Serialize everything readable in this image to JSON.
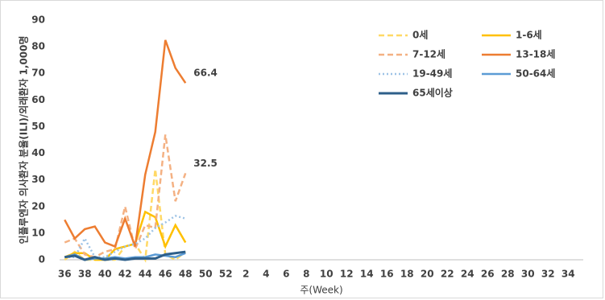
{
  "chart_data": {
    "type": "line",
    "y_label": "인플루엔자 의사환자 분율(ILI)/외래환자 1,000명",
    "x_label": "주(Week)",
    "categories": [
      "36",
      null,
      "38",
      null,
      "40",
      null,
      "42",
      null,
      "44",
      null,
      "46",
      null,
      "48",
      null,
      "50",
      null,
      "52",
      null,
      "2",
      null,
      "4",
      null,
      "6",
      null,
      "8",
      null,
      "10",
      null,
      "12",
      null,
      "14",
      null,
      "16",
      null,
      "18",
      null,
      "20",
      null,
      "22",
      null,
      "24",
      null,
      "26",
      null,
      "28",
      null,
      "30",
      null,
      "32",
      null,
      "34",
      null
    ],
    "ylim": [
      0,
      90
    ],
    "yticks": [
      0,
      10,
      20,
      30,
      40,
      50,
      60,
      70,
      80,
      90
    ],
    "grid": false,
    "legend": "top-right",
    "series": [
      {
        "name": "0세",
        "color": "#ffd966",
        "style": "dashed",
        "values": [
          0,
          3,
          0,
          0,
          0,
          0,
          5,
          6,
          0,
          34,
          2,
          0,
          3,
          null,
          null,
          null,
          null,
          null,
          null,
          null,
          null,
          null,
          null,
          null,
          null,
          null,
          null,
          null,
          null,
          null,
          null,
          null,
          null,
          null,
          null,
          null,
          null,
          null,
          null,
          null,
          null,
          null,
          null,
          null,
          null,
          null,
          null,
          null,
          null,
          null,
          null,
          null
        ]
      },
      {
        "name": "1-6세",
        "color": "#ffc000",
        "style": "solid",
        "values": [
          1,
          2.5,
          2.5,
          0,
          0,
          4,
          5,
          6,
          18,
          16,
          5,
          13,
          6.5,
          null,
          null,
          null,
          null,
          null,
          null,
          null,
          null,
          null,
          null,
          null,
          null,
          null,
          null,
          null,
          null,
          null,
          null,
          null,
          null,
          null,
          null,
          null,
          null,
          null,
          null,
          null,
          null,
          null,
          null,
          null,
          null,
          null,
          null,
          null,
          null,
          null,
          null,
          null
        ]
      },
      {
        "name": "7-12세",
        "color": "#f4b183",
        "style": "dashed",
        "show_last_label": true,
        "values": [
          6.5,
          8,
          2,
          1,
          3,
          4,
          20,
          4,
          13,
          12,
          47,
          22,
          32.5,
          null,
          null,
          null,
          null,
          null,
          null,
          null,
          null,
          null,
          null,
          null,
          null,
          null,
          null,
          null,
          null,
          null,
          null,
          null,
          null,
          null,
          null,
          null,
          null,
          null,
          null,
          null,
          null,
          null,
          null,
          null,
          null,
          null,
          null,
          null,
          null,
          null,
          null,
          null
        ]
      },
      {
        "name": "13-18세",
        "color": "#ed7d31",
        "style": "solid",
        "show_last_label": true,
        "values": [
          15,
          8,
          11.5,
          12.5,
          6.5,
          5,
          15.5,
          5,
          32,
          48,
          82.5,
          72,
          66.4,
          null,
          null,
          null,
          null,
          null,
          null,
          null,
          null,
          null,
          null,
          null,
          null,
          null,
          null,
          null,
          null,
          null,
          null,
          null,
          null,
          null,
          null,
          null,
          null,
          null,
          null,
          null,
          null,
          null,
          null,
          null,
          null,
          null,
          null,
          null,
          null,
          null,
          null,
          null
        ]
      },
      {
        "name": "19-49세",
        "color": "#9dc3e6",
        "style": "dotted",
        "values": [
          1,
          1,
          8,
          1,
          1,
          3,
          5,
          6,
          8,
          12,
          14,
          16.5,
          15.5,
          null,
          null,
          null,
          null,
          null,
          null,
          null,
          null,
          null,
          null,
          null,
          null,
          null,
          null,
          null,
          null,
          null,
          null,
          null,
          null,
          null,
          null,
          null,
          null,
          null,
          null,
          null,
          null,
          null,
          null,
          null,
          null,
          null,
          null,
          null,
          null,
          null,
          null,
          null
        ]
      },
      {
        "name": "50-64세",
        "color": "#5b9bd5",
        "style": "solid",
        "values": [
          1,
          2,
          0,
          0.5,
          0.5,
          1,
          0.5,
          1,
          1,
          2,
          1.5,
          1,
          2.5,
          null,
          null,
          null,
          null,
          null,
          null,
          null,
          null,
          null,
          null,
          null,
          null,
          null,
          null,
          null,
          null,
          null,
          null,
          null,
          null,
          null,
          null,
          null,
          null,
          null,
          null,
          null,
          null,
          null,
          null,
          null,
          null,
          null,
          null,
          null,
          null,
          null,
          null,
          null
        ]
      },
      {
        "name": "65세이상",
        "color": "#2e5f8a",
        "style": "solid",
        "values": [
          1,
          1.5,
          0,
          1,
          0,
          0.5,
          0,
          0.5,
          0.5,
          0.5,
          2,
          2.5,
          3,
          null,
          null,
          null,
          null,
          null,
          null,
          null,
          null,
          null,
          null,
          null,
          null,
          null,
          null,
          null,
          null,
          null,
          null,
          null,
          null,
          null,
          null,
          null,
          null,
          null,
          null,
          null,
          null,
          null,
          null,
          null,
          null,
          null,
          null,
          null,
          null,
          null,
          null,
          null
        ]
      }
    ]
  }
}
